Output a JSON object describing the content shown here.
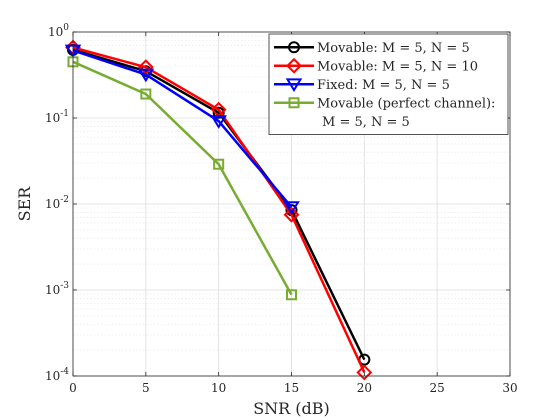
{
  "chart_data": {
    "type": "line",
    "xlabel": "SNR (dB)",
    "ylabel": "SER",
    "xlim": [
      0,
      30
    ],
    "ylim": [
      0.0001,
      1
    ],
    "y_scale": "log",
    "grid": true,
    "legend_position": "top-right",
    "x_ticks": [
      "0",
      "5",
      "10",
      "15",
      "20",
      "25",
      "30"
    ],
    "y_ticks": [
      {
        "base": "10",
        "exp": "0"
      },
      {
        "base": "10",
        "exp": "-1"
      },
      {
        "base": "10",
        "exp": "-2"
      },
      {
        "base": "10",
        "exp": "-3"
      },
      {
        "base": "10",
        "exp": "-4"
      }
    ],
    "series": [
      {
        "name": "Movable: M = 5, N = 5",
        "legend_lines": [
          "Movable: M = 5, N = 5"
        ],
        "color": "#000000",
        "marker": "circle",
        "x": [
          0,
          5,
          10,
          15,
          20
        ],
        "y": [
          0.62,
          0.35,
          0.115,
          0.0085,
          0.000155
        ]
      },
      {
        "name": "Movable: M = 5, N = 10",
        "legend_lines": [
          "Movable: M = 5, N = 10"
        ],
        "color": "#ff0000",
        "marker": "diamond",
        "x": [
          0,
          5,
          10,
          15,
          20
        ],
        "y": [
          0.66,
          0.39,
          0.125,
          0.0075,
          0.00011
        ]
      },
      {
        "name": "Fixed: M = 5, N = 5",
        "legend_lines": [
          "Fixed: M = 5, N = 5"
        ],
        "color": "#0000ff",
        "marker": "triangle-down",
        "x": [
          0,
          5,
          10,
          15
        ],
        "y": [
          0.61,
          0.32,
          0.092,
          0.0092
        ]
      },
      {
        "name": "Movable (perfect channel): M = 5, N = 5",
        "legend_lines": [
          "Movable (perfect channel):",
          "M = 5, N = 5"
        ],
        "color": "#77ac30",
        "marker": "square",
        "x": [
          0,
          5,
          10,
          15
        ],
        "y": [
          0.45,
          0.19,
          0.029,
          0.00088
        ]
      }
    ]
  }
}
